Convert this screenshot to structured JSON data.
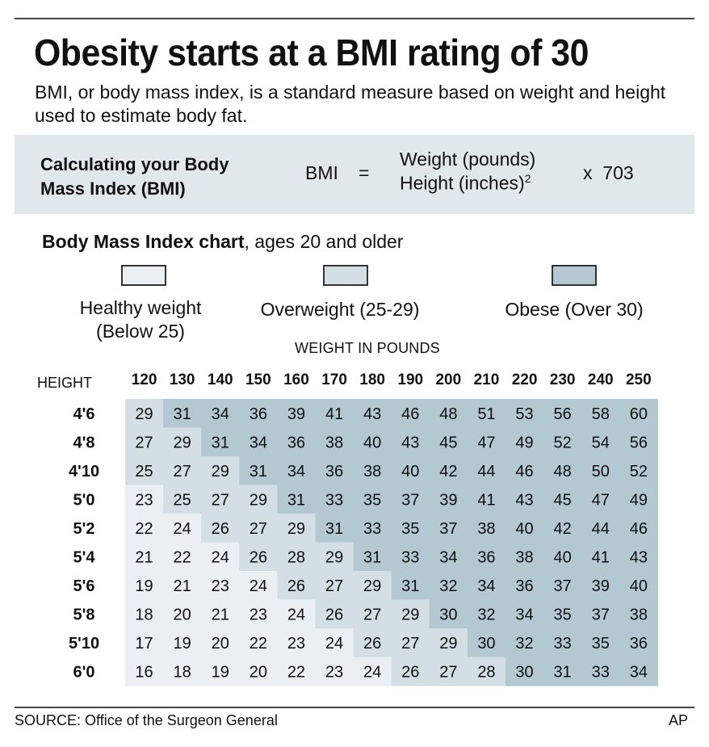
{
  "title": "Obesity starts at a BMI rating of 30",
  "subtitle": "BMI, or body mass index, is a standard measure based on weight and height used to estimate body fat.",
  "formula": {
    "label_line1": "Calculating your Body",
    "label_line2": "Mass Index (BMI)",
    "lhs": "BMI",
    "equals": "=",
    "numerator": "Weight (pounds)",
    "denominator": "Height (inches)",
    "exponent": "2",
    "multiplier": "x  703"
  },
  "chart_caption": {
    "bold": "Body Mass Index chart",
    "rest": ", ages 20 and older"
  },
  "legend": [
    {
      "line1": "Healthy weight",
      "line2": "(Below 25)",
      "color": "#e9eff2"
    },
    {
      "line1": "Overweight (25-29)",
      "line2": "",
      "color": "#d3dfe4"
    },
    {
      "line1": "Obese (Over 30)",
      "line2": "",
      "color": "#b4c8d1"
    }
  ],
  "chart_data": {
    "type": "table",
    "title": "Body Mass Index chart",
    "column_axis_label": "WEIGHT IN POUNDS",
    "row_axis_label": "HEIGHT",
    "columns": [
      "120",
      "130",
      "140",
      "150",
      "160",
      "170",
      "180",
      "190",
      "200",
      "210",
      "220",
      "230",
      "240",
      "250"
    ],
    "rows": [
      "4'6",
      "4'8",
      "4'10",
      "5'0",
      "5'2",
      "5'4",
      "5'6",
      "5'8",
      "5'10",
      "6'0"
    ],
    "values": [
      [
        29,
        31,
        34,
        36,
        39,
        41,
        43,
        46,
        48,
        51,
        53,
        56,
        58,
        60
      ],
      [
        27,
        29,
        31,
        34,
        36,
        38,
        40,
        43,
        45,
        47,
        49,
        52,
        54,
        56
      ],
      [
        25,
        27,
        29,
        31,
        34,
        36,
        38,
        40,
        42,
        44,
        46,
        48,
        50,
        52
      ],
      [
        23,
        25,
        27,
        29,
        31,
        33,
        35,
        37,
        39,
        41,
        43,
        45,
        47,
        49
      ],
      [
        22,
        24,
        26,
        27,
        29,
        31,
        33,
        35,
        37,
        38,
        40,
        42,
        44,
        46
      ],
      [
        21,
        22,
        24,
        26,
        28,
        29,
        31,
        33,
        34,
        36,
        38,
        40,
        41,
        43
      ],
      [
        19,
        21,
        23,
        24,
        26,
        27,
        29,
        31,
        32,
        34,
        36,
        37,
        39,
        40
      ],
      [
        18,
        20,
        21,
        23,
        24,
        26,
        27,
        29,
        30,
        32,
        34,
        35,
        37,
        38
      ],
      [
        17,
        19,
        20,
        22,
        23,
        24,
        26,
        27,
        29,
        30,
        32,
        33,
        35,
        36
      ],
      [
        16,
        18,
        19,
        20,
        22,
        23,
        24,
        26,
        27,
        28,
        30,
        31,
        33,
        34
      ]
    ],
    "categories": {
      "healthy_below": 25,
      "obese_from": 30
    },
    "colors": {
      "healthy": "#e9eff2",
      "overweight": "#d3dfe4",
      "obese": "#b4c8d1"
    }
  },
  "source": "SOURCE: Office of the Surgeon General",
  "credit": "AP"
}
